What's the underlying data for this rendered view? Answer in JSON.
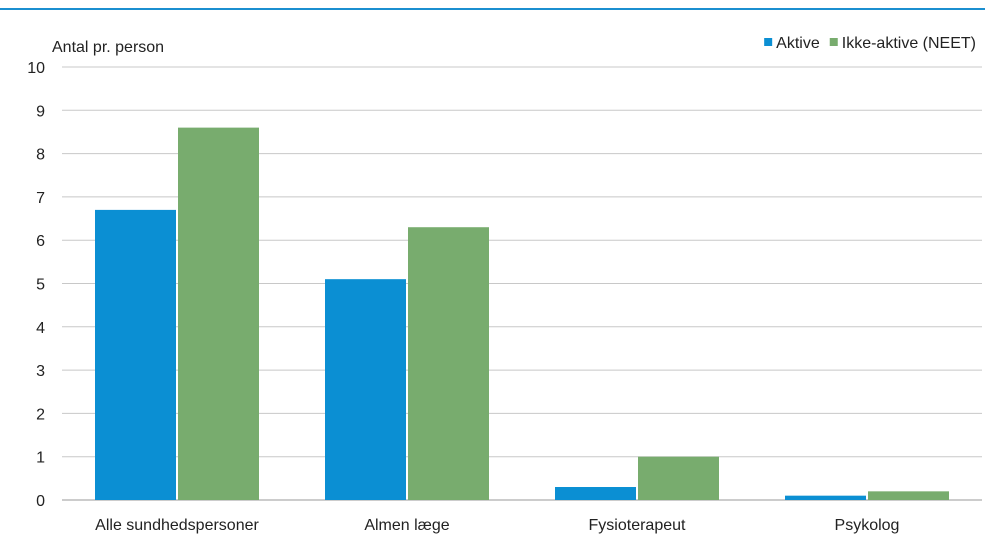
{
  "chart_data": {
    "type": "bar",
    "ylabel": "Antal pr. person",
    "ylim": [
      0,
      10
    ],
    "yticks": [
      0,
      1,
      2,
      3,
      4,
      5,
      6,
      7,
      8,
      9,
      10
    ],
    "categories": [
      "Alle sundhedspersoner",
      "Almen læge",
      "Fysioterapeut",
      "Psykolog"
    ],
    "series": [
      {
        "name": "Aktive",
        "color": "#0b8fd3",
        "values": [
          6.7,
          5.1,
          0.3,
          0.1
        ]
      },
      {
        "name": "Ikke-aktive (NEET)",
        "color": "#78ac6e",
        "values": [
          8.6,
          6.3,
          1.0,
          0.2
        ]
      }
    ],
    "grid": true,
    "legend_position": "top-right"
  }
}
